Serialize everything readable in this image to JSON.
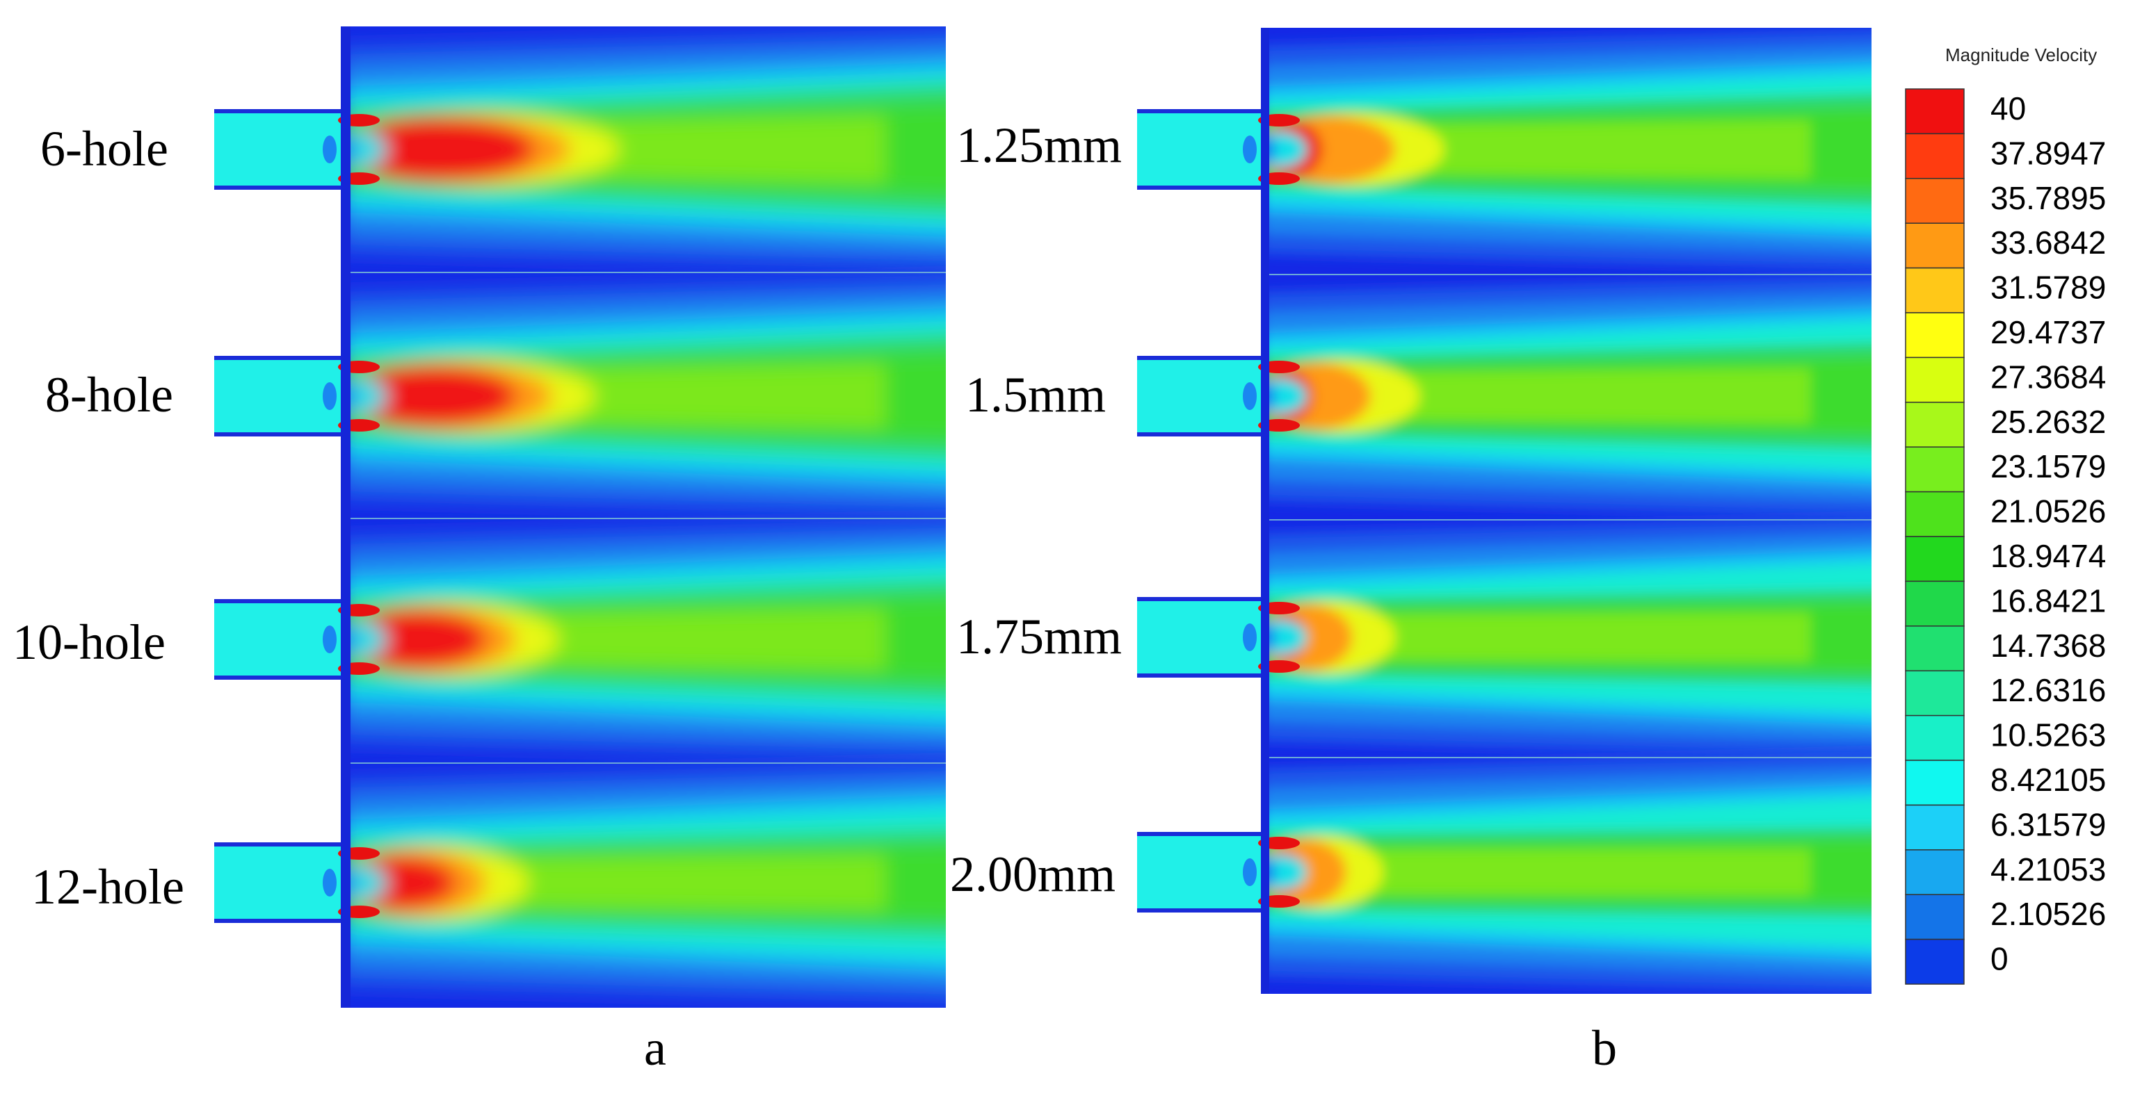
{
  "chart_data": {
    "type": "heatmap",
    "panels": [
      {
        "label": "a",
        "rows": [
          "6-hole",
          "8-hole",
          "10-hole",
          "12-hole"
        ],
        "jet_red_extent": [
          0.32,
          0.29,
          0.24,
          0.19
        ],
        "jet_orange_extent": [
          0.38,
          0.35,
          0.29,
          0.24
        ],
        "jet_yellow_extent": [
          0.46,
          0.42,
          0.36,
          0.31
        ],
        "jet_core_ratio": [
          1.0,
          0.95,
          0.9,
          0.8
        ]
      },
      {
        "label": "b",
        "rows": [
          "1.25mm",
          "1.5mm",
          "1.75mm",
          "2.00mm"
        ],
        "jet_red_extent": [
          0.1,
          0.085,
          0.075,
          0.07
        ],
        "jet_orange_extent": [
          0.22,
          0.18,
          0.15,
          0.14
        ],
        "jet_yellow_extent": [
          0.3,
          0.26,
          0.22,
          0.2
        ],
        "jet_core_ratio": [
          0.85,
          0.8,
          0.7,
          0.65
        ]
      }
    ],
    "legend": {
      "title": "Magnitude Velocity",
      "min": 0,
      "max": 40,
      "levels": [
        "40",
        "37.8947",
        "35.7895",
        "33.6842",
        "31.5789",
        "29.4737",
        "27.3684",
        "25.2632",
        "23.1579",
        "21.0526",
        "18.9474",
        "16.8421",
        "14.7368",
        "12.6316",
        "10.5263",
        "8.42105",
        "6.31579",
        "4.21053",
        "2.10526",
        "0"
      ],
      "colors": [
        "#f01010",
        "#ff3c10",
        "#ff6a12",
        "#ff9a14",
        "#ffc818",
        "#ffff10",
        "#d8ff10",
        "#a8f81a",
        "#78ee1e",
        "#4ee21c",
        "#22d81e",
        "#20d84a",
        "#20e070",
        "#1ee89a",
        "#18f0c8",
        "#10f8f0",
        "#1cd0f8",
        "#18a8f0",
        "#1474e8",
        "#0c3ce8"
      ]
    }
  }
}
